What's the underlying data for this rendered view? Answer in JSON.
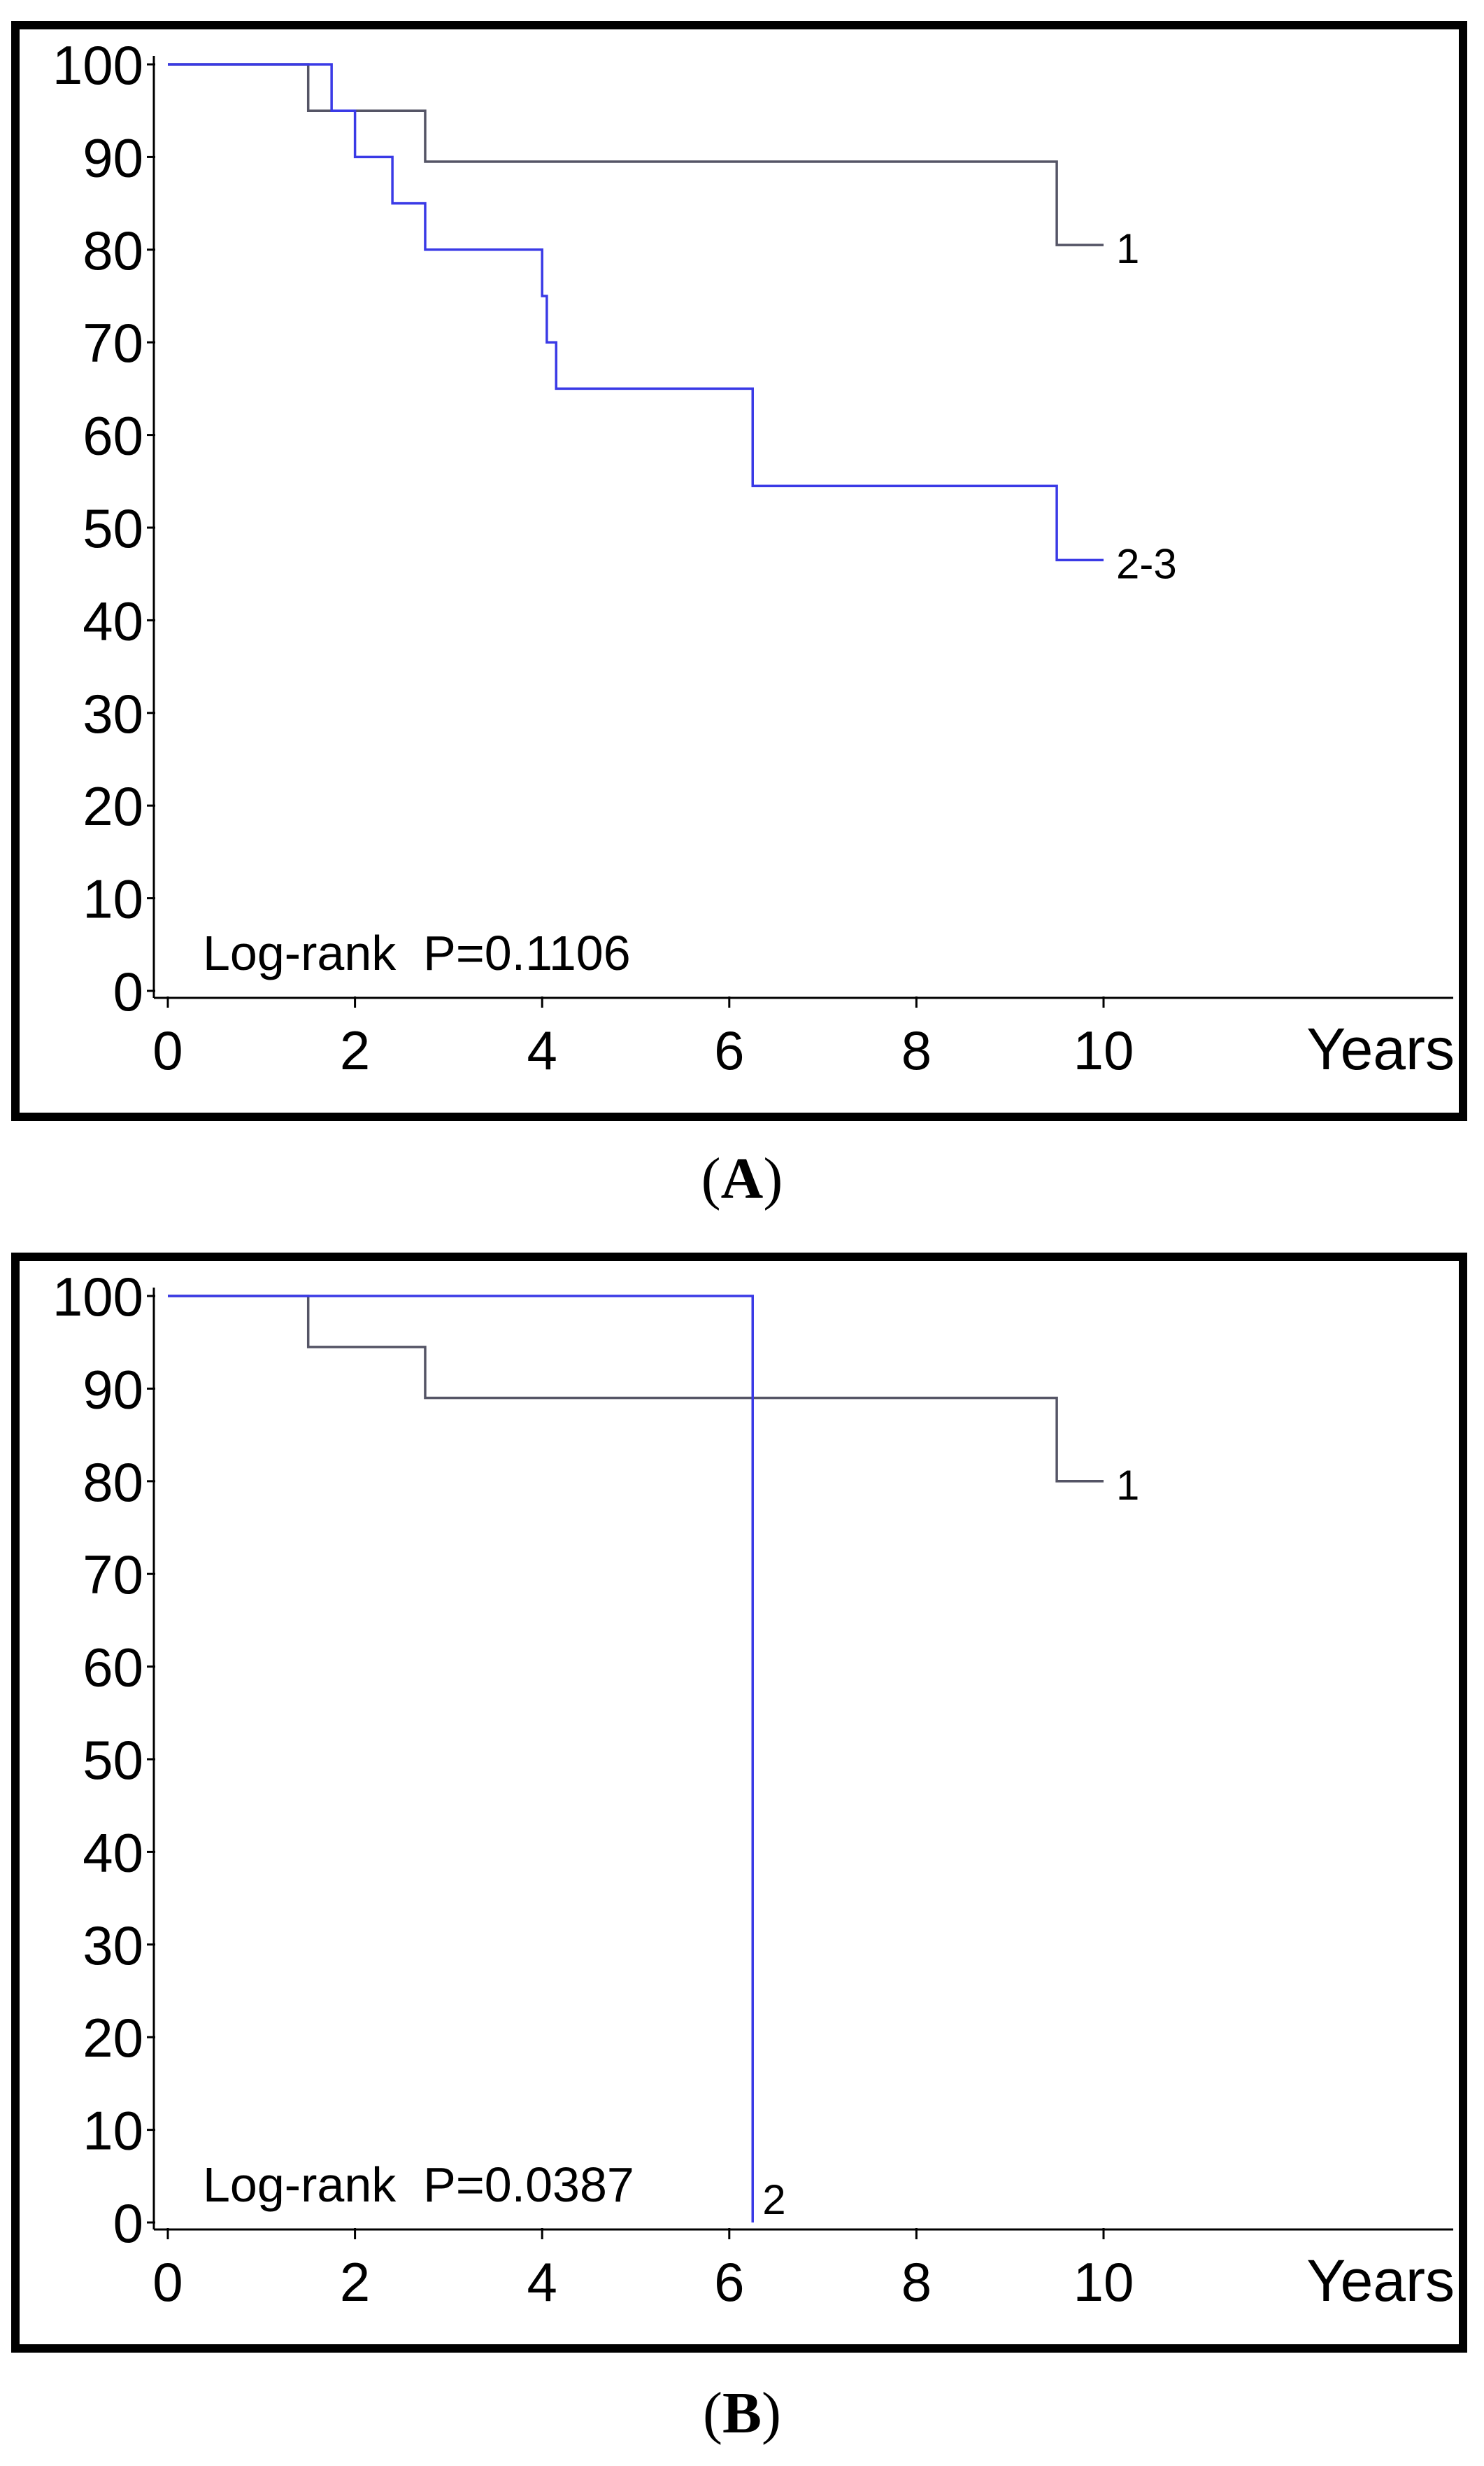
{
  "chart_data": [
    {
      "type": "line",
      "step": true,
      "panel": "A",
      "xlabel": "Years",
      "ylabel": "",
      "xlim": [
        0,
        10
      ],
      "ylim": [
        0,
        100
      ],
      "xticks": [
        0,
        2,
        4,
        6,
        8,
        10
      ],
      "yticks": [
        0,
        10,
        20,
        30,
        40,
        50,
        60,
        70,
        80,
        90,
        100
      ],
      "annotation": "Log-rank  P=0.1106",
      "grid": false,
      "series": [
        {
          "name": "1",
          "color": "#555566",
          "x": [
            0,
            1.5,
            2.75,
            9.5,
            10
          ],
          "y": [
            100,
            95,
            89.5,
            80.5,
            80.5
          ]
        },
        {
          "name": "2-3",
          "color": "#3a3ae6",
          "x": [
            0,
            1.75,
            2.0,
            2.4,
            2.75,
            4.0,
            4.05,
            4.1,
            4.15,
            6.25,
            9.5,
            10
          ],
          "y": [
            100,
            95,
            90,
            85,
            80,
            75,
            70,
            70,
            65,
            54.5,
            46.5,
            46.5
          ]
        }
      ]
    },
    {
      "type": "line",
      "step": true,
      "panel": "B",
      "xlabel": "Years",
      "ylabel": "",
      "xlim": [
        0,
        10
      ],
      "ylim": [
        0,
        100
      ],
      "xticks": [
        0,
        2,
        4,
        6,
        8,
        10
      ],
      "yticks": [
        0,
        10,
        20,
        30,
        40,
        50,
        60,
        70,
        80,
        90,
        100
      ],
      "annotation": "Log-rank  P=0.0387",
      "grid": false,
      "series": [
        {
          "name": "1",
          "color": "#555566",
          "x": [
            0,
            1.5,
            2.75,
            9.5,
            10
          ],
          "y": [
            100,
            94.5,
            89,
            80,
            80
          ]
        },
        {
          "name": "2",
          "color": "#3a3ae6",
          "x": [
            0,
            6.25,
            6.25
          ],
          "y": [
            100,
            100,
            0
          ]
        }
      ]
    }
  ],
  "captions": [
    "A",
    "B"
  ]
}
